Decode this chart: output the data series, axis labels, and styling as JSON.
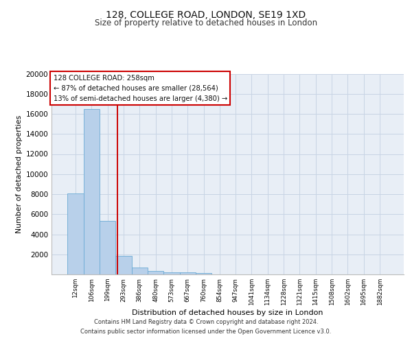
{
  "title1": "128, COLLEGE ROAD, LONDON, SE19 1XD",
  "title2": "Size of property relative to detached houses in London",
  "xlabel": "Distribution of detached houses by size in London",
  "ylabel": "Number of detached properties",
  "bar_values": [
    8100,
    16500,
    5300,
    1850,
    700,
    320,
    230,
    200,
    170,
    0,
    0,
    0,
    0,
    0,
    0,
    0,
    0,
    0,
    0,
    0
  ],
  "categories": [
    "12sqm",
    "106sqm",
    "199sqm",
    "293sqm",
    "386sqm",
    "480sqm",
    "573sqm",
    "667sqm",
    "760sqm",
    "854sqm",
    "947sqm",
    "1041sqm",
    "1134sqm",
    "1228sqm",
    "1321sqm",
    "1415sqm",
    "1508sqm",
    "1602sqm",
    "1695sqm",
    "1882sqm"
  ],
  "bar_color": "#b8d0ea",
  "bar_edge_color": "#6aaad4",
  "grid_color": "#c8d4e4",
  "background_color": "#e8eef6",
  "red_line_x": 2.62,
  "annotation_text": "128 COLLEGE ROAD: 258sqm\n← 87% of detached houses are smaller (28,564)\n13% of semi-detached houses are larger (4,380) →",
  "annotation_box_color": "#ffffff",
  "annotation_border_color": "#cc0000",
  "footer_text": "Contains HM Land Registry data © Crown copyright and database right 2024.\nContains public sector information licensed under the Open Government Licence v3.0.",
  "ylim": [
    0,
    20000
  ],
  "yticks": [
    0,
    2000,
    4000,
    6000,
    8000,
    10000,
    12000,
    14000,
    16000,
    18000,
    20000
  ]
}
